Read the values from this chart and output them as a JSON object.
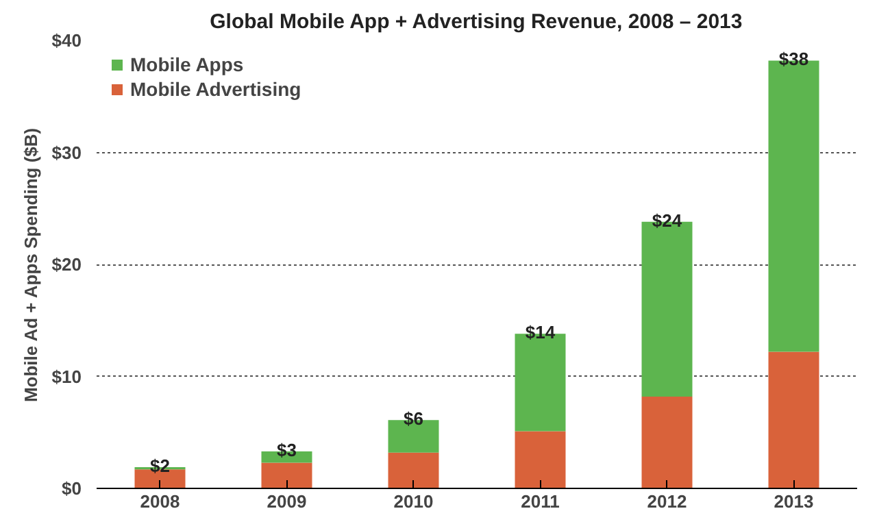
{
  "chart_data": {
    "type": "bar",
    "title": "Global Mobile App + Advertising Revenue, 2008 – 2013",
    "ylabel": "Mobile Ad + Apps Spending ($B)",
    "categories": [
      "2008",
      "2009",
      "2010",
      "2011",
      "2012",
      "2013"
    ],
    "stacked": true,
    "series": [
      {
        "name": "Mobile Advertising",
        "color": "#d9623a",
        "values": [
          1.7,
          2.3,
          3.2,
          5.1,
          8.2,
          12.2
        ]
      },
      {
        "name": "Mobile Apps",
        "color": "#5db54f",
        "values": [
          0.2,
          1.0,
          2.9,
          8.7,
          15.6,
          26.0
        ]
      }
    ],
    "totals": [
      "$2",
      "$3",
      "$6",
      "$14",
      "$24",
      "$38"
    ],
    "ylim": [
      0,
      40
    ],
    "yticks": [
      {
        "value": 0,
        "label": "$0"
      },
      {
        "value": 10,
        "label": "$10"
      },
      {
        "value": 20,
        "label": "$20"
      },
      {
        "value": 30,
        "label": "$30"
      },
      {
        "value": 40,
        "label": "$40"
      }
    ],
    "grid": "y",
    "legend": "top left"
  }
}
